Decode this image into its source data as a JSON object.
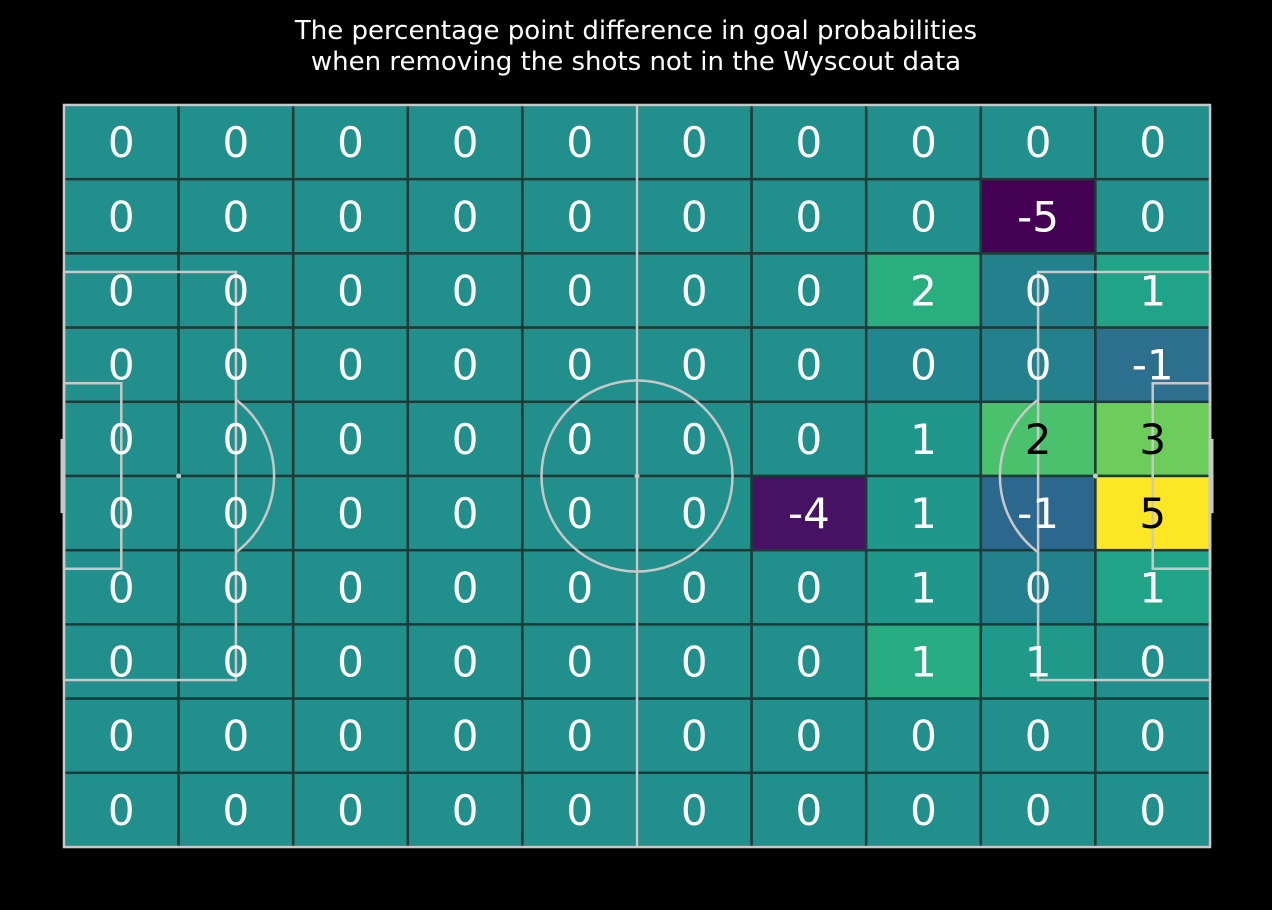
{
  "chart_data": {
    "type": "heatmap",
    "title": "The percentage point difference in goal probabilities\nwhen removing the shots not in the Wyscout data",
    "title_lines": [
      "The percentage point difference in goal probabilities",
      "when removing the shots not in the Wyscout data"
    ],
    "xlabel": "",
    "ylabel": "",
    "rows": 10,
    "cols": 10,
    "colormap": "viridis",
    "vmin": -5,
    "vmax": 5,
    "values": [
      [
        0,
        0,
        0,
        0,
        0,
        0,
        0,
        0,
        0,
        0
      ],
      [
        0,
        0,
        0,
        0,
        0,
        0,
        0,
        0,
        -5,
        0
      ],
      [
        0,
        0,
        0,
        0,
        0,
        0,
        0,
        2,
        0,
        1
      ],
      [
        0,
        0,
        0,
        0,
        0,
        0,
        0,
        0,
        0,
        -1
      ],
      [
        0,
        0,
        0,
        0,
        0,
        0,
        0,
        1,
        2,
        3
      ],
      [
        0,
        0,
        0,
        0,
        0,
        0,
        -4,
        1,
        -1,
        5
      ],
      [
        0,
        0,
        0,
        0,
        0,
        0,
        0,
        1,
        0,
        1
      ],
      [
        0,
        0,
        0,
        0,
        0,
        0,
        0,
        1,
        1,
        0
      ],
      [
        0,
        0,
        0,
        0,
        0,
        0,
        0,
        0,
        0,
        0
      ],
      [
        0,
        0,
        0,
        0,
        0,
        0,
        0,
        0,
        0,
        0
      ]
    ],
    "cell_colors": [
      [
        "#21908d",
        "#21908d",
        "#21908d",
        "#21908d",
        "#21908d",
        "#21908d",
        "#21908d",
        "#21908d",
        "#21908d",
        "#21908d"
      ],
      [
        "#21908d",
        "#21908d",
        "#21908d",
        "#21908d",
        "#21908d",
        "#21908d",
        "#21908d",
        "#21908d",
        "#440154",
        "#21908d"
      ],
      [
        "#21908d",
        "#21908d",
        "#21908d",
        "#21908d",
        "#21908d",
        "#21908d",
        "#21908d",
        "#29af7f",
        "#23818e",
        "#20a386"
      ],
      [
        "#21908d",
        "#21908d",
        "#21908d",
        "#21908d",
        "#21908d",
        "#21908d",
        "#21908d",
        "#22868e",
        "#23818e",
        "#2d6f8e"
      ],
      [
        "#21908d",
        "#21908d",
        "#21908d",
        "#21908d",
        "#21908d",
        "#21908d",
        "#21908d",
        "#1f988b",
        "#4ac16d",
        "#6ccd5a"
      ],
      [
        "#21908d",
        "#21908d",
        "#21908d",
        "#21908d",
        "#21908d",
        "#21908d",
        "#471164",
        "#1f988b",
        "#2c688e",
        "#fde725"
      ],
      [
        "#21908d",
        "#21908d",
        "#21908d",
        "#21908d",
        "#21908d",
        "#21908d",
        "#21908d",
        "#1f988b",
        "#23818e",
        "#20a386"
      ],
      [
        "#21908d",
        "#21908d",
        "#21908d",
        "#21908d",
        "#21908d",
        "#21908d",
        "#21908d",
        "#27ad81",
        "#1f9a8a",
        "#21908d"
      ],
      [
        "#21908d",
        "#21908d",
        "#21908d",
        "#21908d",
        "#21908d",
        "#21908d",
        "#21908d",
        "#21908d",
        "#21908d",
        "#21908d"
      ],
      [
        "#21908d",
        "#21908d",
        "#21908d",
        "#21908d",
        "#21908d",
        "#21908d",
        "#21908d",
        "#21908d",
        "#21908d",
        "#21908d"
      ]
    ],
    "label_color_light": "#ffffff",
    "label_color_dark": "#000000",
    "grid_color": "#1e3a36",
    "pitch_line_color": "#c8c8c8",
    "background_color": "#000000",
    "legend": "none",
    "grid": true
  }
}
